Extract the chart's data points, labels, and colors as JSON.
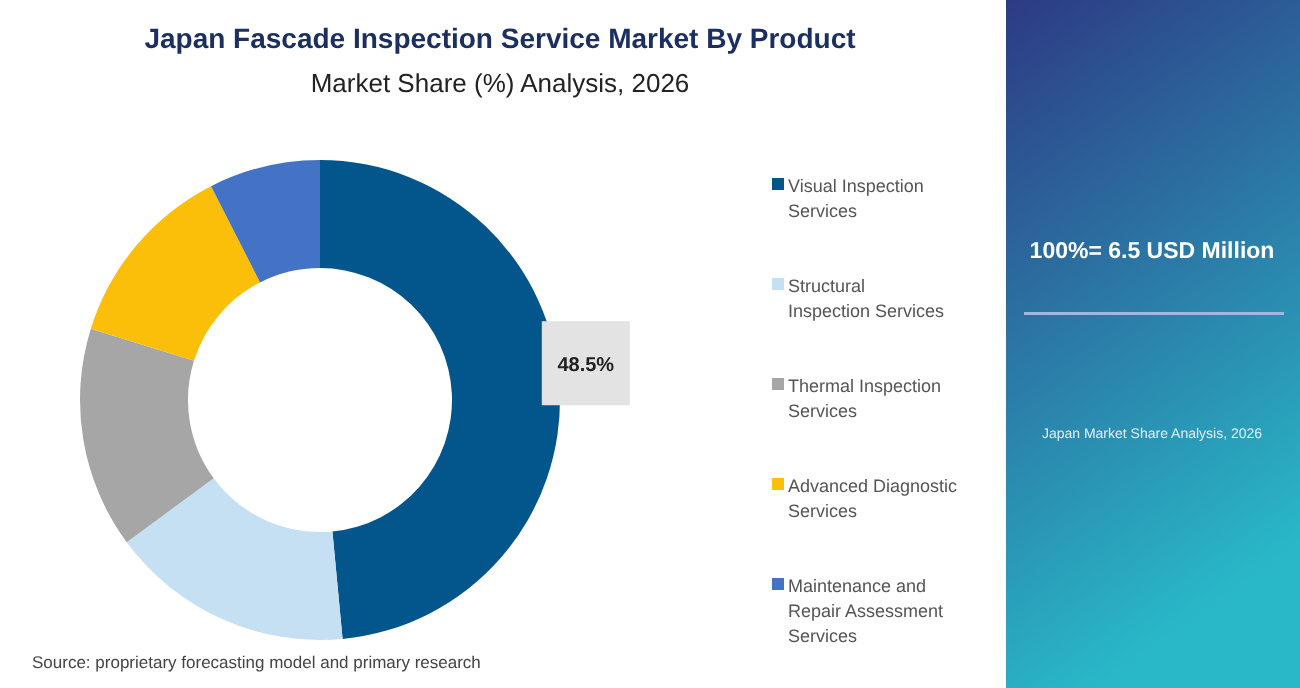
{
  "chart_data": {
    "type": "donut",
    "title": "Japan Fascade Inspection Service Market By Product",
    "subtitle": "Market Share (%) Analysis, 2026",
    "categories": [
      "Visual Inspection Services",
      "Structural Inspection Services",
      "Thermal Inspection Services",
      "Advanced Diagnostic Services",
      "Maintenance and Repair Assessment Services"
    ],
    "values": [
      48.5,
      16.4,
      14.9,
      12.7,
      7.5
    ],
    "colors": [
      "#03568c",
      "#c5e0f2",
      "#a6a6a6",
      "#fbbf0a",
      "#4472c4"
    ],
    "value_labels": [
      "48.5%",
      null,
      null,
      null,
      null
    ],
    "legend": "right",
    "annotations": [
      "100%= 6.5 USD Million",
      "Japan Market Share Analysis, 2026",
      "Source: proprietary forecasting model and primary research"
    ]
  }
}
